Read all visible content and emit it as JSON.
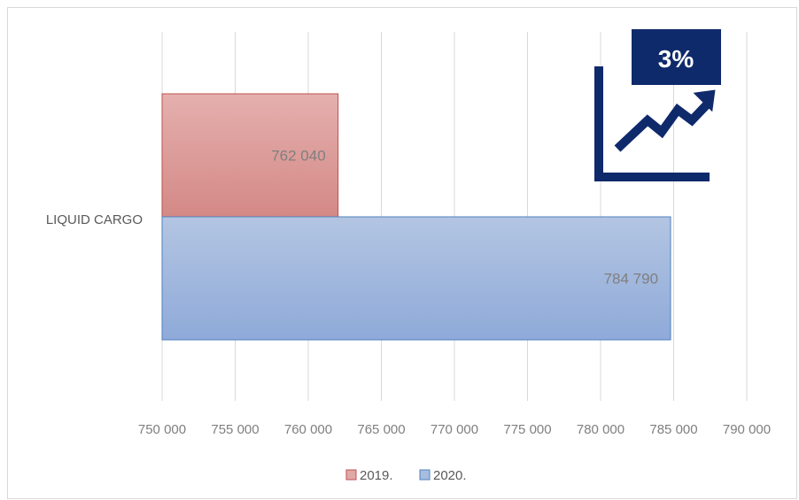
{
  "chart_data": {
    "type": "bar",
    "orientation": "horizontal",
    "categories": [
      "LIQUID CARGO"
    ],
    "series": [
      {
        "name": "2019.",
        "values": [
          762040
        ],
        "label": "762 040",
        "color": "#c0504d"
      },
      {
        "name": "2020.",
        "values": [
          784790
        ],
        "label": "784 790",
        "color": "#4f81bd"
      }
    ],
    "xlim": [
      750000,
      790000
    ],
    "xticks": [
      750000,
      755000,
      760000,
      765000,
      770000,
      775000,
      780000,
      785000,
      790000
    ],
    "xtick_labels": [
      "750 000",
      "755 000",
      "760 000",
      "765 000",
      "770 000",
      "775 000",
      "780 000",
      "785 000",
      "790 000"
    ],
    "grid": "vertical",
    "legend": "bottom"
  },
  "badge": {
    "text": "3%",
    "icon": "trend-up-icon",
    "color": "#0f2a6b"
  }
}
